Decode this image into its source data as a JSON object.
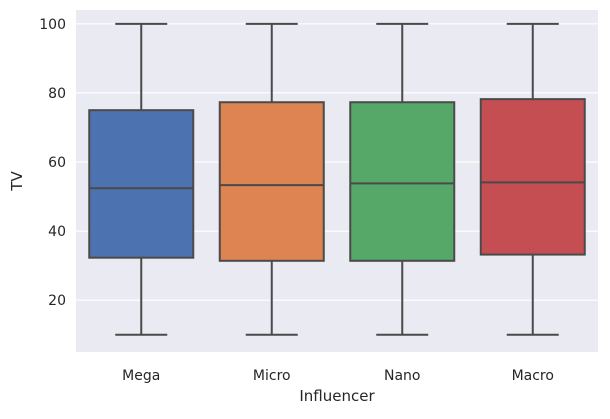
{
  "chart_data": {
    "type": "box",
    "xlabel": "Influencer",
    "ylabel": "TV",
    "categories": [
      "Mega",
      "Micro",
      "Nano",
      "Macro"
    ],
    "colors": [
      "#4c72b0",
      "#dd8452",
      "#55a868",
      "#c44e52"
    ],
    "background_color": "#eaeaf2",
    "grid": true,
    "ylim": [
      5,
      104
    ],
    "yticks": [
      20,
      40,
      60,
      80,
      100
    ],
    "boxes": [
      {
        "category": "Mega",
        "min": 10,
        "q1": 32.3,
        "median": 52.4,
        "q3": 75.0,
        "max": 100
      },
      {
        "category": "Micro",
        "min": 10,
        "q1": 31.4,
        "median": 53.3,
        "q3": 77.3,
        "max": 100
      },
      {
        "category": "Nano",
        "min": 10,
        "q1": 31.4,
        "median": 53.8,
        "q3": 77.3,
        "max": 100
      },
      {
        "category": "Macro",
        "min": 10,
        "q1": 33.2,
        "median": 54.1,
        "q3": 78.2,
        "max": 100
      }
    ]
  }
}
